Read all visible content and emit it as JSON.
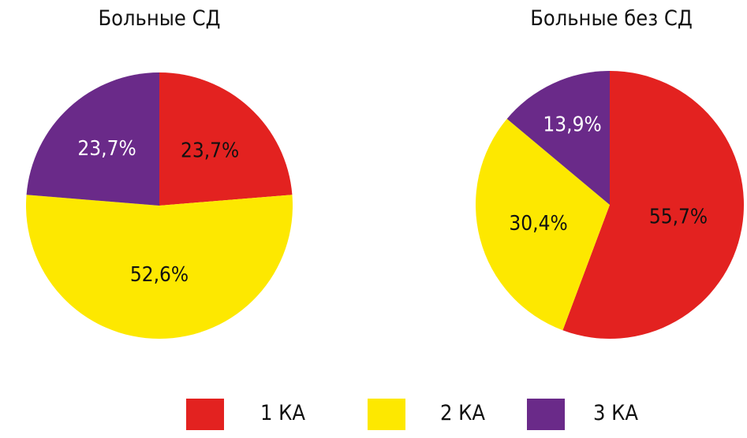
{
  "chart_data": [
    {
      "type": "pie",
      "title": "Больные СД",
      "slices": [
        {
          "category": "1 КА",
          "value": 23.7,
          "label": "23,7%",
          "color": "#e32220",
          "label_color": "#111111"
        },
        {
          "category": "2 КА",
          "value": 52.6,
          "label": "52,6%",
          "color": "#fde800",
          "label_color": "#111111"
        },
        {
          "category": "3 КА",
          "value": 23.7,
          "label": "23,7%",
          "color": "#6a2a89",
          "label_color": "#ffffff"
        }
      ]
    },
    {
      "type": "pie",
      "title": "Больные без СД",
      "slices": [
        {
          "category": "1 КА",
          "value": 55.7,
          "label": "55,7%",
          "color": "#e32220",
          "label_color": "#111111"
        },
        {
          "category": "2 КА",
          "value": 30.4,
          "label": "30,4%",
          "color": "#fde800",
          "label_color": "#111111"
        },
        {
          "category": "3 КА",
          "value": 13.9,
          "label": "13,9%",
          "color": "#6a2a89",
          "label_color": "#ffffff"
        }
      ]
    }
  ],
  "legend": [
    {
      "label": "1 КА",
      "color": "#e32220"
    },
    {
      "label": "2 КА",
      "color": "#fde800"
    },
    {
      "label": "3 КА",
      "color": "#6a2a89"
    }
  ]
}
